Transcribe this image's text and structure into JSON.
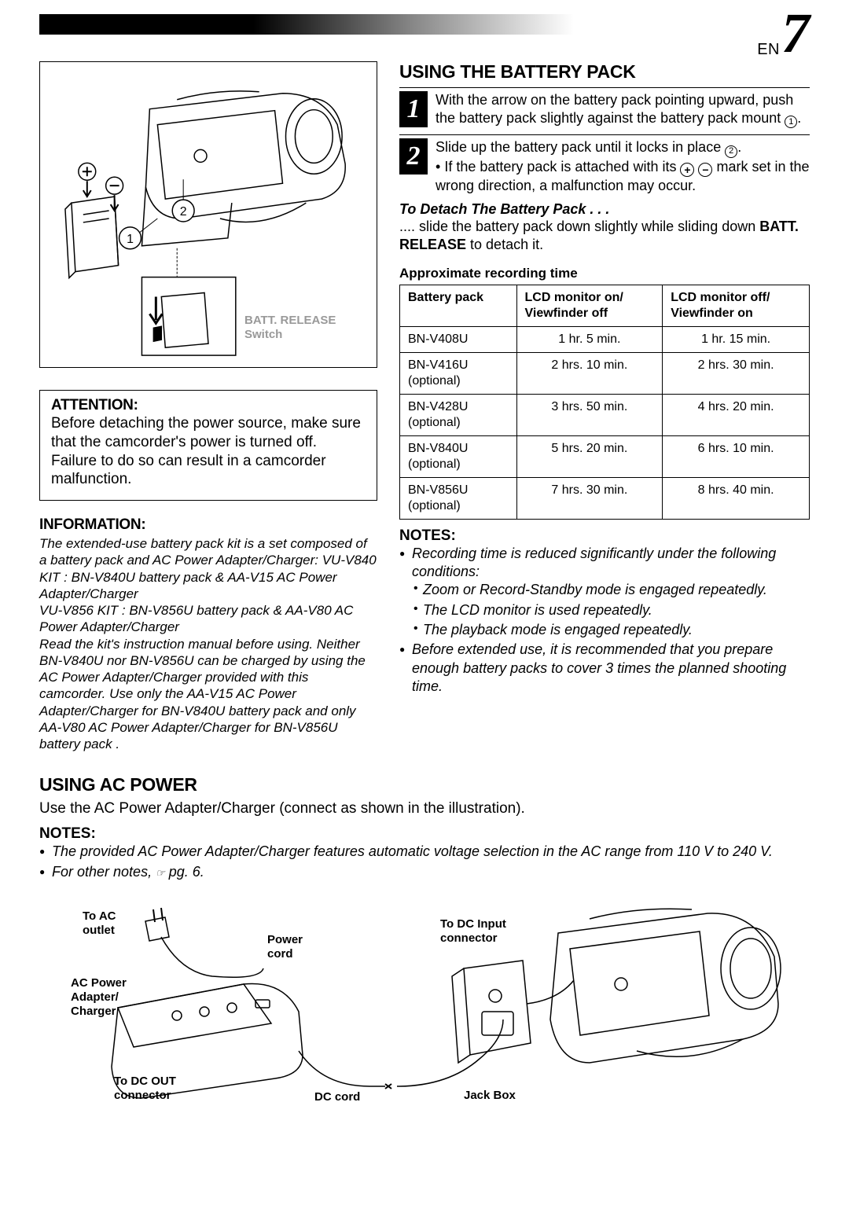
{
  "page": {
    "lang": "EN",
    "number": "7"
  },
  "topIllustration": {
    "label": "BATT. RELEASE\nSwitch",
    "marker1": "1",
    "marker2": "2"
  },
  "attention": {
    "title": "ATTENTION:",
    "text": "Before detaching the power source, make sure that the camcorder's power is turned off. Failure to do so can result in a camcorder malfunction."
  },
  "information": {
    "title": "INFORMATION:",
    "text": "The extended-use battery pack kit is a set composed of a battery pack and AC Power Adapter/Charger: VU-V840 KIT : BN-V840U battery pack & AA-V15 AC Power Adapter/Charger\nVU-V856 KIT : BN-V856U battery pack & AA-V80 AC Power Adapter/Charger\nRead the kit's instruction manual before using. Neither BN-V840U nor BN-V856U can be charged by using the AC Power Adapter/Charger provided with this camcorder. Use only the AA-V15 AC Power Adapter/Charger for BN-V840U battery pack and only AA-V80 AC Power Adapter/Charger for BN-V856U battery pack ."
  },
  "battery": {
    "title": "USING THE BATTERY PACK",
    "step1": "With the arrow on the battery pack pointing upward, push the battery pack slightly against the battery pack mount ",
    "step1_end": ".",
    "step2_line1": "Slide up the battery pack until it locks in place ",
    "step2_line1_end": ".",
    "step2_bullet": "If the battery pack is attached with its ",
    "step2_bullet_end": " mark set in the wrong direction, a malfunction may occur.",
    "detach_heading": "To Detach The Battery Pack . . .",
    "detach_text_pre": ".... slide the battery pack down slightly while sliding down ",
    "detach_bold": "BATT. RELEASE",
    "detach_text_post": " to detach it."
  },
  "table": {
    "title": "Approximate recording time",
    "headers": [
      "Battery pack",
      "LCD monitor on/\nViewfinder off",
      "LCD monitor off/\nViewfinder on"
    ],
    "rows": [
      {
        "name": "BN-V408U",
        "optional": false,
        "on": "1 hr. 5 min.",
        "off": "1 hr. 15 min."
      },
      {
        "name": "BN-V416U",
        "optional": true,
        "on": "2 hrs. 10 min.",
        "off": "2 hrs. 30 min."
      },
      {
        "name": "BN-V428U",
        "optional": true,
        "on": "3 hrs. 50 min.",
        "off": "4 hrs. 20 min."
      },
      {
        "name": "BN-V840U",
        "optional": true,
        "on": "5 hrs. 20 min.",
        "off": "6 hrs. 10 min."
      },
      {
        "name": "BN-V856U",
        "optional": true,
        "on": "7 hrs. 30 min.",
        "off": "8 hrs. 40 min."
      }
    ],
    "optional_text": "(optional)"
  },
  "notes1": {
    "title": "NOTES:",
    "items": [
      "Recording time is reduced significantly under the following conditions:",
      "Before extended use, it is recommended that you prepare enough battery packs to cover 3 times the planned shooting time."
    ],
    "sub": [
      "Zoom or Record-Standby mode is engaged repeatedly.",
      "The LCD monitor is used repeatedly.",
      "The playback mode is engaged repeatedly."
    ]
  },
  "ac": {
    "title": "USING AC POWER",
    "text": "Use the AC Power Adapter/Charger (connect as shown in the illustration).",
    "notes_title": "NOTES:",
    "note1": "The provided AC Power Adapter/Charger features automatic voltage selection in the AC range from 110 V to 240 V.",
    "note2_pre": "For other notes, ",
    "note2_post": " pg. 6.",
    "labels": {
      "ac_outlet": "To AC\noutlet",
      "power_cord": "Power\ncord",
      "adapter": "AC Power\nAdapter/\nCharger",
      "dc_out": "To DC OUT\nconnector",
      "dc_cord": "DC cord",
      "dc_in": "To DC Input\nconnector",
      "jack": "Jack Box"
    }
  }
}
